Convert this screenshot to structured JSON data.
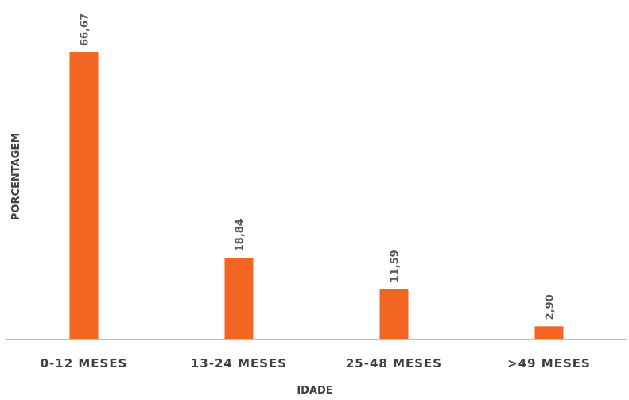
{
  "chart_data": {
    "type": "bar",
    "title": "",
    "xlabel": "IDADE",
    "ylabel": "PORCENTAGEM",
    "categories": [
      "0-12 MESES",
      "13-24 MESES",
      "25-48 MESES",
      ">49 MESES"
    ],
    "values": [
      66.67,
      18.84,
      11.59,
      2.9
    ],
    "data_labels": [
      "66,67",
      "18,84",
      "11,59",
      "2,90"
    ],
    "ylim": [
      0,
      68
    ],
    "grid": false,
    "legend": "none",
    "bar_color": "#F26522",
    "axis_color": "#bfbfbf"
  }
}
